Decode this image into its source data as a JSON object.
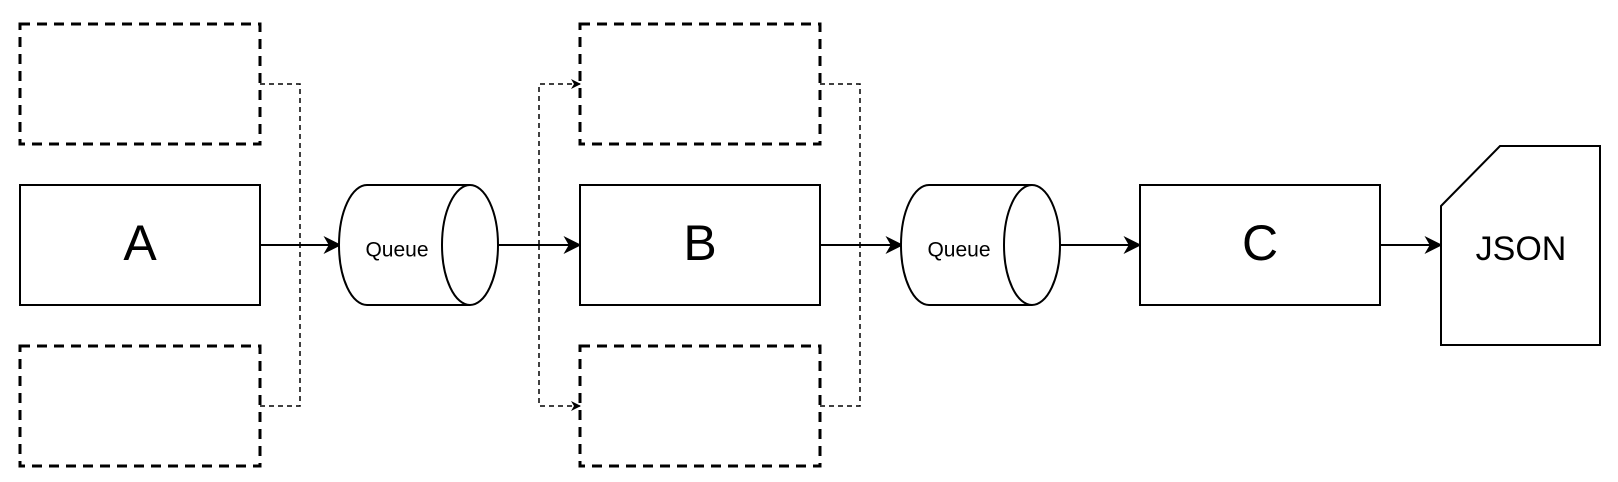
{
  "nodes": {
    "a": {
      "label": "A"
    },
    "b": {
      "label": "B"
    },
    "c": {
      "label": "C"
    },
    "queue1": {
      "label": "Queue"
    },
    "queue2": {
      "label": "Queue"
    },
    "json": {
      "label": "JSON"
    }
  },
  "colors": {
    "stroke": "#000000",
    "background": "#ffffff"
  }
}
